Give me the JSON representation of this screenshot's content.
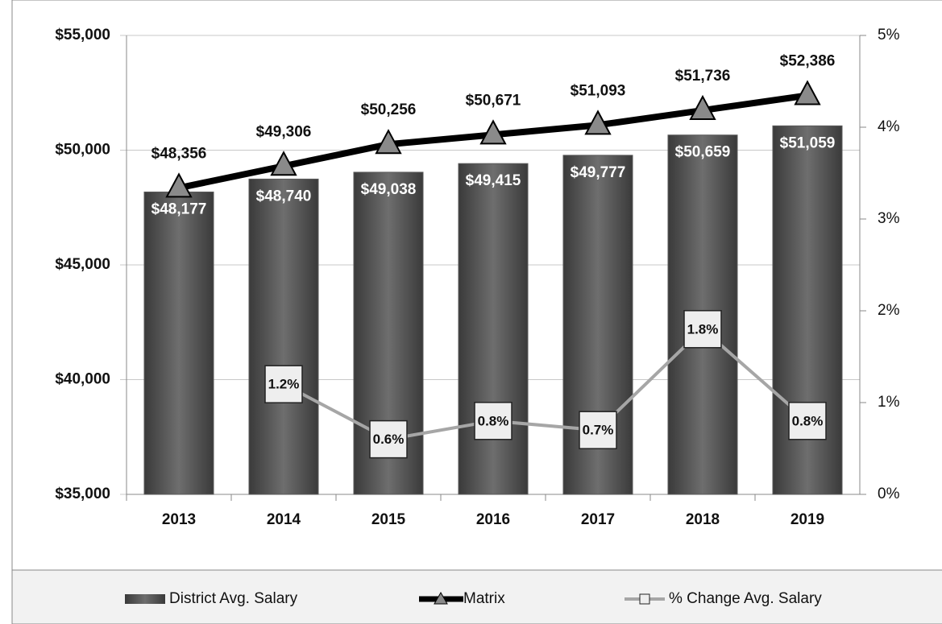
{
  "chart_data": {
    "type": "bar-line",
    "categories": [
      "2013",
      "2014",
      "2015",
      "2016",
      "2017",
      "2018",
      "2019"
    ],
    "series": [
      {
        "name": "District Avg. Salary",
        "type": "bar",
        "color": "#5a5a5a",
        "values": [
          48177,
          48740,
          49038,
          49415,
          49777,
          50659,
          51059
        ],
        "value_labels": [
          "$48,177",
          "$48,740",
          "$49,038",
          "$49,415",
          "$49,777",
          "$50,659",
          "$51,059"
        ]
      },
      {
        "name": "Matrix",
        "type": "line",
        "color": "#000000",
        "values": [
          48356,
          49306,
          50256,
          50671,
          51093,
          51736,
          52386
        ],
        "value_labels": [
          "$48,356",
          "$49,306",
          "$50,256",
          "$50,671",
          "$51,093",
          "$51,736",
          "$52,386"
        ]
      },
      {
        "name": "% Change Avg. Salary",
        "type": "line",
        "axis": "y2",
        "color": "#a6a6a6",
        "values": [
          null,
          1.2,
          0.6,
          0.8,
          0.7,
          1.8,
          0.8
        ],
        "value_labels": [
          null,
          "1.2%",
          "0.6%",
          "0.8%",
          "0.7%",
          "1.8%",
          "0.8%"
        ]
      }
    ],
    "ylim": [
      35000,
      55000
    ],
    "yticks": [
      {
        "value": 35000,
        "label": "$35,000"
      },
      {
        "value": 40000,
        "label": "$40,000"
      },
      {
        "value": 45000,
        "label": "$45,000"
      },
      {
        "value": 50000,
        "label": "$50,000"
      },
      {
        "value": 55000,
        "label": "$55,000"
      }
    ],
    "y2lim": [
      0,
      5
    ],
    "y2ticks": [
      {
        "value": 0,
        "label": "0%"
      },
      {
        "value": 1,
        "label": "1%"
      },
      {
        "value": 2,
        "label": "2%"
      },
      {
        "value": 3,
        "label": "3%"
      },
      {
        "value": 4,
        "label": "4%"
      },
      {
        "value": 5,
        "label": "5%"
      }
    ],
    "grid": true,
    "legend": "bottom"
  }
}
